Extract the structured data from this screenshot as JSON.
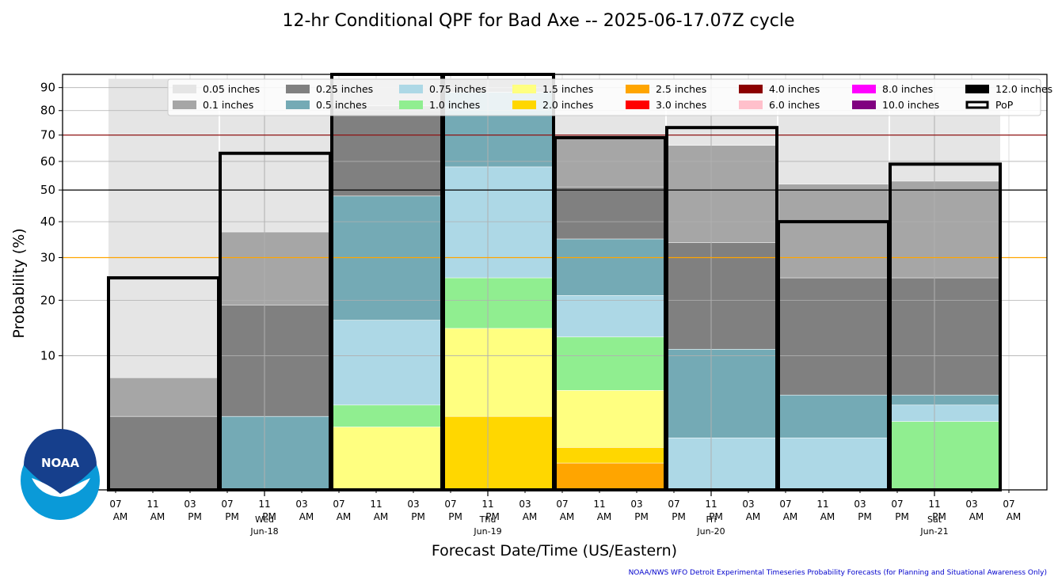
{
  "chart_data": {
    "type": "bar",
    "title": "12-hr Conditional QPF for Bad Axe -- 2025-06-17.07Z cycle",
    "xlabel": "Forecast Date/Time (US/Eastern)",
    "ylabel": "Probability (%)",
    "yscale": "sqrt",
    "ylim": [
      0,
      96
    ],
    "yticks": [
      10,
      20,
      30,
      40,
      50,
      60,
      70,
      80,
      90
    ],
    "reference_lines": [
      {
        "value": 30,
        "color": "#ffa500"
      },
      {
        "value": 50,
        "color": "#000000"
      },
      {
        "value": 70,
        "color": "#8b0000"
      }
    ],
    "x_tick_labels": [
      [
        "07",
        "AM"
      ],
      [
        "11",
        "AM"
      ],
      [
        "03",
        "PM"
      ],
      [
        "07",
        "PM"
      ],
      [
        "11",
        "PM"
      ],
      [
        "03",
        "AM"
      ],
      [
        "07",
        "AM"
      ],
      [
        "11",
        "AM"
      ],
      [
        "03",
        "PM"
      ],
      [
        "07",
        "PM"
      ],
      [
        "11",
        "PM"
      ],
      [
        "03",
        "AM"
      ],
      [
        "07",
        "AM"
      ],
      [
        "11",
        "AM"
      ],
      [
        "03",
        "PM"
      ],
      [
        "07",
        "PM"
      ],
      [
        "11",
        "PM"
      ],
      [
        "03",
        "AM"
      ],
      [
        "07",
        "AM"
      ],
      [
        "11",
        "AM"
      ],
      [
        "03",
        "PM"
      ],
      [
        "07",
        "PM"
      ],
      [
        "11",
        "PM"
      ],
      [
        "03",
        "AM"
      ],
      [
        "07",
        "AM"
      ]
    ],
    "date_labels": [
      {
        "day": "Wed",
        "date": "Jun-18",
        "tick": 4
      },
      {
        "day": "Thu",
        "date": "Jun-19",
        "tick": 10
      },
      {
        "day": "Fri",
        "date": "Jun-20",
        "tick": 16
      },
      {
        "day": "Sat",
        "date": "Jun-21",
        "tick": 22
      }
    ],
    "periods": [
      "06-17 07AM",
      "06-17 07PM",
      "06-18 07AM",
      "06-18 07PM",
      "06-19 07AM",
      "06-19 07PM",
      "06-20 07AM",
      "06-20 07PM"
    ],
    "series": [
      {
        "name": "0.05 inches",
        "color": "#e5e5e5",
        "values": [
          94,
          94,
          94,
          94,
          94,
          94,
          94,
          94
        ]
      },
      {
        "name": "0.1 inches",
        "color": "#a6a6a6",
        "values": [
          7,
          37,
          94,
          94,
          69,
          66,
          52,
          53
        ]
      },
      {
        "name": "0.25 inches",
        "color": "#808080",
        "values": [
          3,
          19,
          82,
          94,
          51,
          34,
          25,
          25
        ]
      },
      {
        "name": "0.5 inches",
        "color": "#74aab5",
        "values": [
          0,
          3,
          48,
          88,
          35,
          11,
          5,
          5
        ]
      },
      {
        "name": "0.75 inches",
        "color": "#add8e6",
        "values": [
          0,
          0,
          16,
          58,
          21,
          1.5,
          1.5,
          4
        ]
      },
      {
        "name": "1.0 inches",
        "color": "#90ee90",
        "values": [
          0,
          0,
          4,
          25,
          13,
          0,
          0,
          2.6
        ]
      },
      {
        "name": "1.5 inches",
        "color": "#ffff80",
        "values": [
          0,
          0,
          2.2,
          14.5,
          5.5,
          0,
          0,
          0
        ]
      },
      {
        "name": "2.0 inches",
        "color": "#ffd700",
        "values": [
          0,
          0,
          0,
          3,
          1,
          0,
          0,
          0
        ]
      },
      {
        "name": "2.5 inches",
        "color": "#ffa500",
        "values": [
          0,
          0,
          0,
          0,
          0.4,
          0,
          0,
          0
        ]
      },
      {
        "name": "3.0 inches",
        "color": "#ff0000",
        "values": [
          0,
          0,
          0,
          0,
          0,
          0,
          0,
          0
        ]
      },
      {
        "name": "4.0 inches",
        "color": "#8b0000",
        "values": [
          0,
          0,
          0,
          0,
          0,
          0,
          0,
          0
        ]
      },
      {
        "name": "6.0 inches",
        "color": "#ffc0cb",
        "values": [
          0,
          0,
          0,
          0,
          0,
          0,
          0,
          0
        ]
      },
      {
        "name": "8.0 inches",
        "color": "#ff00ff",
        "values": [
          0,
          0,
          0,
          0,
          0,
          0,
          0,
          0
        ]
      },
      {
        "name": "10.0 inches",
        "color": "#800080",
        "values": [
          0,
          0,
          0,
          0,
          0,
          0,
          0,
          0
        ]
      },
      {
        "name": "12.0 inches",
        "color": "#000000",
        "values": [
          0,
          0,
          0,
          0,
          0,
          0,
          0,
          0
        ]
      }
    ],
    "pop": {
      "name": "PoP",
      "values": [
        25,
        63,
        96,
        96,
        69,
        73,
        40,
        59
      ]
    },
    "legend_position": "top",
    "grid": true
  },
  "logo_text": "NOAA",
  "footer": "NOAA/NWS WFO Detroit Experimental Timeseries Probability Forecasts (for Planning and Situational Awareness Only)"
}
